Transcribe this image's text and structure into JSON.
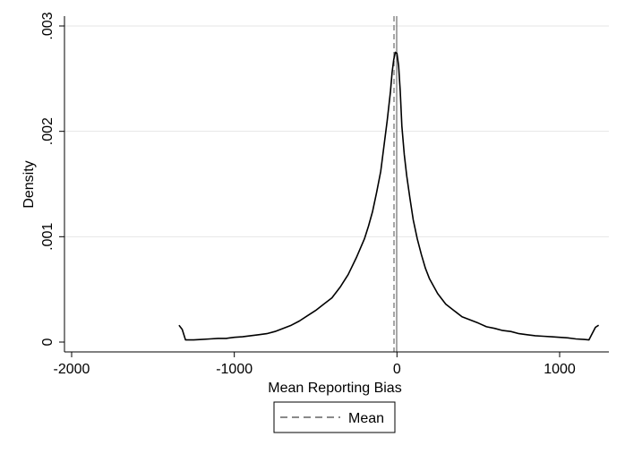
{
  "chart_data": {
    "type": "line",
    "title": "",
    "xlabel": "Mean Reporting Bias",
    "ylabel": "Density",
    "xlim": [
      -2000,
      1250
    ],
    "ylim": [
      0,
      0.003
    ],
    "grid": true,
    "x_ticks": [
      {
        "value": -2000,
        "label": "-2000"
      },
      {
        "value": -1000,
        "label": "-1000"
      },
      {
        "value": 0,
        "label": "0"
      },
      {
        "value": 1000,
        "label": "1000"
      }
    ],
    "y_ticks": [
      {
        "value": 0,
        "label": "0"
      },
      {
        "value": 0.001,
        "label": ".001"
      },
      {
        "value": 0.002,
        "label": ".002"
      },
      {
        "value": 0.003,
        "label": ".003"
      }
    ],
    "series": [
      {
        "color": "#000000",
        "x": [
          -1340,
          -1320,
          -1300,
          -1250,
          -1200,
          -1150,
          -1100,
          -1050,
          -1000,
          -950,
          -900,
          -850,
          -800,
          -750,
          -700,
          -650,
          -600,
          -550,
          -500,
          -450,
          -400,
          -350,
          -300,
          -250,
          -200,
          -175,
          -150,
          -125,
          -100,
          -80,
          -60,
          -40,
          -30,
          -20,
          -10,
          0,
          10,
          20,
          30,
          45,
          60,
          80,
          100,
          125,
          150,
          175,
          200,
          250,
          300,
          350,
          400,
          450,
          500,
          550,
          600,
          650,
          700,
          750,
          800,
          850,
          900,
          950,
          1000,
          1050,
          1100,
          1150,
          1180,
          1200,
          1220,
          1240
        ],
        "y": [
          0.00016,
          0.00012,
          2e-05,
          2e-05,
          2.5e-05,
          3e-05,
          3.5e-05,
          3.5e-05,
          4.5e-05,
          5e-05,
          6e-05,
          7e-05,
          8e-05,
          0.0001,
          0.00013,
          0.00016,
          0.0002,
          0.00025,
          0.0003,
          0.00036,
          0.00042,
          0.00052,
          0.00064,
          0.0008,
          0.00098,
          0.0011,
          0.00124,
          0.00142,
          0.00162,
          0.00186,
          0.0021,
          0.00238,
          0.00256,
          0.00268,
          0.00275,
          0.00274,
          0.00262,
          0.00238,
          0.00205,
          0.00178,
          0.00158,
          0.00136,
          0.00116,
          0.00098,
          0.00083,
          0.0007,
          0.0006,
          0.00046,
          0.00036,
          0.0003,
          0.00024,
          0.00021,
          0.00018,
          0.000145,
          0.00013,
          0.00011,
          0.0001,
          8e-05,
          7e-05,
          6e-05,
          5.5e-05,
          5e-05,
          4.5e-05,
          4e-05,
          3e-05,
          2.5e-05,
          2e-05,
          8e-05,
          0.00014,
          0.00016
        ]
      }
    ],
    "reference_line": {
      "x": -10,
      "label": "Mean",
      "style": "dashed",
      "color": "#8a8a8a"
    },
    "legend": {
      "position": "bottom",
      "entries": [
        {
          "label": "Mean",
          "style": "dashed",
          "color": "#8a8a8a"
        }
      ]
    }
  }
}
